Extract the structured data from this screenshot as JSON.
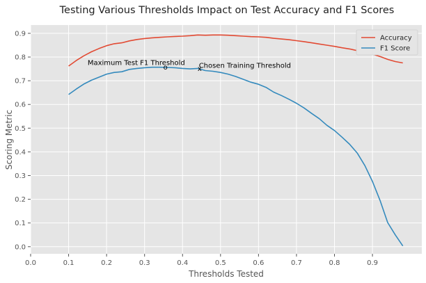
{
  "chart_data": {
    "type": "line",
    "title": "Testing Various Thresholds Impact on Test Accuracy and F1 Scores",
    "xlabel": "Thresholds Tested",
    "ylabel": "Scoring Metric",
    "xlim": [
      0.0,
      1.03
    ],
    "ylim": [
      -0.03,
      0.935
    ],
    "xticks": [
      0.0,
      0.1,
      0.2,
      0.3,
      0.4,
      0.5,
      0.6,
      0.7,
      0.8,
      0.9
    ],
    "xtick_labels": [
      "0.0",
      "0.1",
      "0.2",
      "0.3",
      "0.4",
      "0.5",
      "0.6",
      "0.7",
      "0.8",
      "0.9"
    ],
    "yticks": [
      0.0,
      0.1,
      0.2,
      0.3,
      0.4,
      0.5,
      0.6,
      0.7,
      0.8,
      0.9
    ],
    "ytick_labels": [
      "0.0",
      "0.1",
      "0.2",
      "0.3",
      "0.4",
      "0.5",
      "0.6",
      "0.7",
      "0.8",
      "0.9"
    ],
    "grid": true,
    "legend_position": "top-right",
    "series": [
      {
        "name": "Accuracy",
        "color": "#E24A33",
        "x": [
          0.1,
          0.12,
          0.14,
          0.16,
          0.18,
          0.2,
          0.22,
          0.24,
          0.26,
          0.28,
          0.3,
          0.32,
          0.34,
          0.36,
          0.38,
          0.4,
          0.42,
          0.44,
          0.46,
          0.48,
          0.5,
          0.52,
          0.54,
          0.56,
          0.58,
          0.6,
          0.62,
          0.64,
          0.66,
          0.68,
          0.7,
          0.72,
          0.74,
          0.76,
          0.78,
          0.8,
          0.82,
          0.84,
          0.86,
          0.88,
          0.9,
          0.92,
          0.94,
          0.96,
          0.98
        ],
        "y": [
          0.762,
          0.785,
          0.805,
          0.822,
          0.836,
          0.848,
          0.856,
          0.86,
          0.868,
          0.874,
          0.878,
          0.881,
          0.883,
          0.885,
          0.887,
          0.888,
          0.89,
          0.893,
          0.892,
          0.893,
          0.893,
          0.892,
          0.89,
          0.888,
          0.886,
          0.885,
          0.883,
          0.879,
          0.876,
          0.873,
          0.869,
          0.865,
          0.86,
          0.855,
          0.85,
          0.845,
          0.839,
          0.834,
          0.827,
          0.82,
          0.812,
          0.802,
          0.79,
          0.781,
          0.775
        ]
      },
      {
        "name": "F1 Score",
        "color": "#348ABD",
        "x": [
          0.1,
          0.12,
          0.14,
          0.16,
          0.18,
          0.2,
          0.22,
          0.24,
          0.26,
          0.28,
          0.3,
          0.32,
          0.34,
          0.36,
          0.38,
          0.4,
          0.42,
          0.44,
          0.46,
          0.48,
          0.5,
          0.52,
          0.54,
          0.56,
          0.58,
          0.6,
          0.62,
          0.64,
          0.66,
          0.68,
          0.7,
          0.72,
          0.74,
          0.76,
          0.78,
          0.8,
          0.82,
          0.84,
          0.86,
          0.88,
          0.9,
          0.92,
          0.94,
          0.96,
          0.98
        ],
        "y": [
          0.642,
          0.665,
          0.686,
          0.702,
          0.715,
          0.728,
          0.735,
          0.738,
          0.748,
          0.752,
          0.755,
          0.757,
          0.757,
          0.756,
          0.755,
          0.752,
          0.75,
          0.752,
          0.743,
          0.74,
          0.735,
          0.728,
          0.718,
          0.706,
          0.694,
          0.685,
          0.672,
          0.652,
          0.638,
          0.622,
          0.605,
          0.585,
          0.562,
          0.54,
          0.512,
          0.49,
          0.462,
          0.432,
          0.395,
          0.342,
          0.275,
          0.195,
          0.102,
          0.05,
          0.003
        ]
      }
    ],
    "annotations": [
      {
        "text": "Maximum Test F1 Threshold",
        "x": 0.15,
        "y": 0.777,
        "marker": "o",
        "marker_x": 0.355,
        "marker_y": 0.757
      },
      {
        "text": "Chosen Training Threshold",
        "x": 0.443,
        "y": 0.765,
        "marker": "x",
        "marker_x": 0.445,
        "marker_y": 0.752
      }
    ]
  }
}
